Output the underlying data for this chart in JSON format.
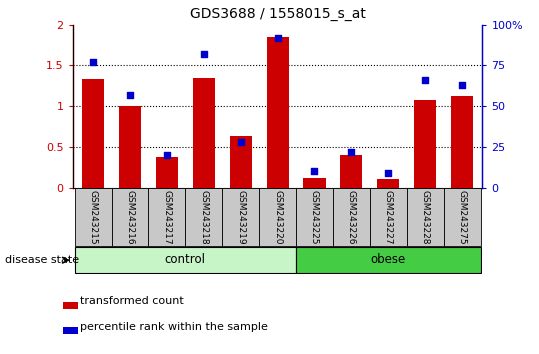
{
  "title": "GDS3688 / 1558015_s_at",
  "samples": [
    "GSM243215",
    "GSM243216",
    "GSM243217",
    "GSM243218",
    "GSM243219",
    "GSM243220",
    "GSM243225",
    "GSM243226",
    "GSM243227",
    "GSM243228",
    "GSM243275"
  ],
  "transformed_count": [
    1.33,
    1.0,
    0.37,
    1.35,
    0.63,
    1.85,
    0.12,
    0.4,
    0.1,
    1.08,
    1.13
  ],
  "percentile_rank": [
    77,
    57,
    20,
    82,
    28,
    92,
    10,
    22,
    9,
    66,
    63
  ],
  "groups": [
    {
      "label": "control",
      "start": 0,
      "end": 5,
      "color": "#C8F0C8"
    },
    {
      "label": "obese",
      "start": 6,
      "end": 10,
      "color": "#44CC44"
    }
  ],
  "ylim_left": [
    0,
    2.0
  ],
  "ylim_right": [
    0,
    100
  ],
  "yticks_left": [
    0,
    0.5,
    1.0,
    1.5,
    2.0
  ],
  "ytick_labels_left": [
    "0",
    "0.5",
    "1",
    "1.5",
    "2"
  ],
  "yticks_right": [
    0,
    25,
    50,
    75,
    100
  ],
  "ytick_labels_right": [
    "0",
    "25",
    "50",
    "75",
    "100%"
  ],
  "bar_color": "#CC0000",
  "dot_color": "#0000CC",
  "label_bg": "#C8C8C8",
  "disease_state_label": "disease state",
  "legend_red": "transformed count",
  "legend_blue": "percentile rank within the sample",
  "bar_width": 0.6
}
